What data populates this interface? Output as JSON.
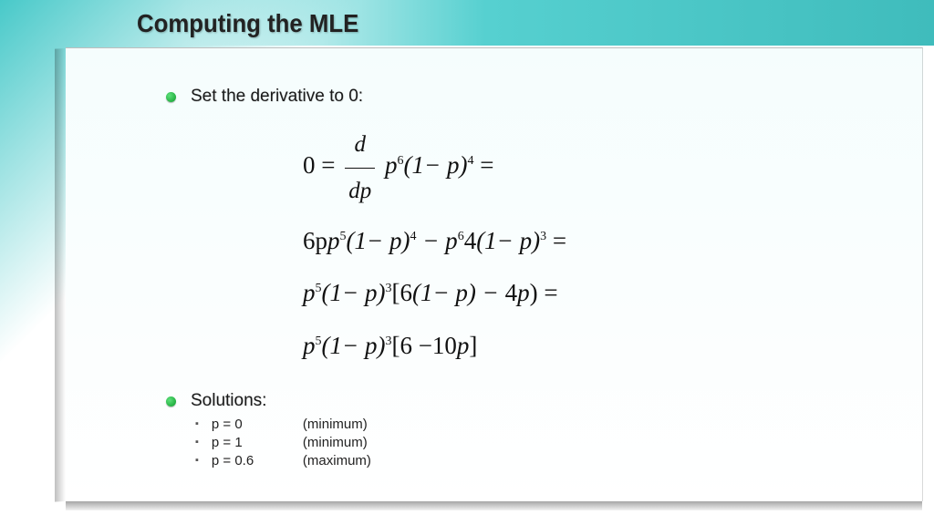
{
  "slide": {
    "title": "Computing the MLE",
    "background_gradient": [
      "#48c9c9",
      "#ffffff"
    ],
    "header_gradient": [
      "#ffffff00",
      "#56d0d0",
      "#3fbcbc"
    ],
    "title_fontsize": 28,
    "title_color": "#222222"
  },
  "bullets": {
    "main": [
      {
        "text": "Set the derivative to 0:",
        "color": "#1a1a1a"
      },
      {
        "text": "Solutions:",
        "color": "#1a1a1a"
      }
    ],
    "bullet_dot_colors": [
      "#5de07a",
      "#0c9c2a"
    ],
    "bullet_fontsize": 19
  },
  "math": {
    "font_family": "Times New Roman",
    "font_size": 27,
    "color": "#111111",
    "lines": {
      "l1_lead": "0",
      "l1_eq1": " = ",
      "l1_frac_num": "d",
      "l1_frac_den": "dp",
      "l1_p": " p",
      "l1_exp1": "6",
      "l1_mid": "(1− p)",
      "l1_exp2": "4",
      "l1_eq2": " =",
      "l2_a": "6p",
      "l2_e1": "5",
      "l2_b": "(1− p)",
      "l2_e2": "4",
      "l2_c": " − p",
      "l2_e3": "6",
      "l2_d": "4(1− p)",
      "l2_e4": "3",
      "l2_eq": " =",
      "l3_a": "p",
      "l3_e1": "5",
      "l3_b": "(1− p)",
      "l3_e2": "3",
      "l3_c": "[6(1− p) − 4p) =",
      "l4_a": "p",
      "l4_e1": "5",
      "l4_b": "(1− p)",
      "l4_e2": "3",
      "l4_c": "[6 −10p]"
    }
  },
  "solutions": {
    "fontsize": 15,
    "items": [
      {
        "value": "p = 0",
        "note": "(minimum)"
      },
      {
        "value": "p = 1",
        "note": "(minimum)"
      },
      {
        "value": "p = 0.6",
        "note": "(maximum)"
      }
    ]
  }
}
